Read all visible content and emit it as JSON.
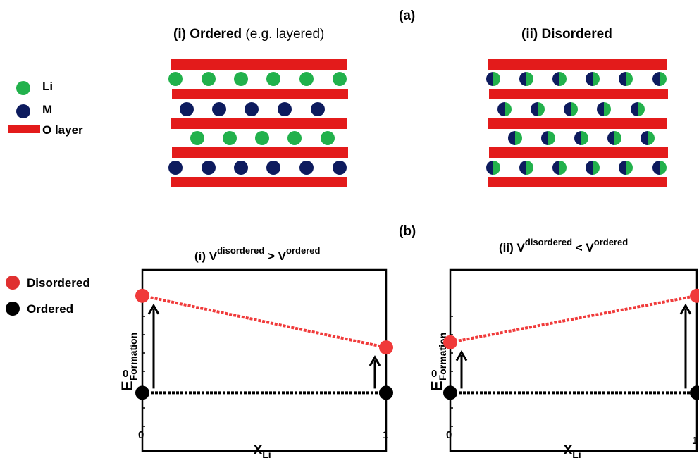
{
  "panel_a": {
    "label": "(a)",
    "ordered_title_bold": "(i) Ordered",
    "ordered_title_normal": " (e.g. layered)",
    "disordered_title": "(ii) Disordered"
  },
  "legend_a": {
    "li": "Li",
    "m": "M",
    "o_layer": "O layer"
  },
  "panel_b": {
    "label": "(b)",
    "plot1": {
      "title_prefix": "(i) V",
      "title_sup1": "disordered",
      "title_op": " > V",
      "title_sup2": "ordered"
    },
    "plot2": {
      "title_prefix": "(ii) V",
      "title_sup1": "disordered",
      "title_op": " < V",
      "title_sup2": "ordered"
    },
    "y_label": "E",
    "y_label_sub": "Formation",
    "x_label": "x",
    "x_label_sub": "Li",
    "tick_x0": "0",
    "tick_x1": "1",
    "tick_y0": "0"
  },
  "legend_b": {
    "disordered": "Disordered",
    "ordered": "Ordered"
  },
  "colors": {
    "li": "#22b14c",
    "m": "#0d1b5e",
    "o_layer": "#e31b1b",
    "disordered": "#f03a3a",
    "ordered": "#000000"
  },
  "chart_data": [
    {
      "type": "line",
      "series": [
        {
          "name": "Disordered",
          "x": [
            0,
            1
          ],
          "y": [
            0.75,
            0.35
          ]
        },
        {
          "name": "Ordered",
          "x": [
            0,
            1
          ],
          "y": [
            0,
            0
          ]
        }
      ],
      "xlim": [
        0,
        1
      ],
      "ylim": [
        -0.45,
        0.95
      ]
    },
    {
      "type": "line",
      "series": [
        {
          "name": "Disordered",
          "x": [
            0,
            1
          ],
          "y": [
            0.39,
            0.75
          ]
        },
        {
          "name": "Ordered",
          "x": [
            0,
            1
          ],
          "y": [
            0,
            0
          ]
        }
      ],
      "xlim": [
        0,
        1
      ],
      "ylim": [
        -0.45,
        0.95
      ]
    }
  ]
}
